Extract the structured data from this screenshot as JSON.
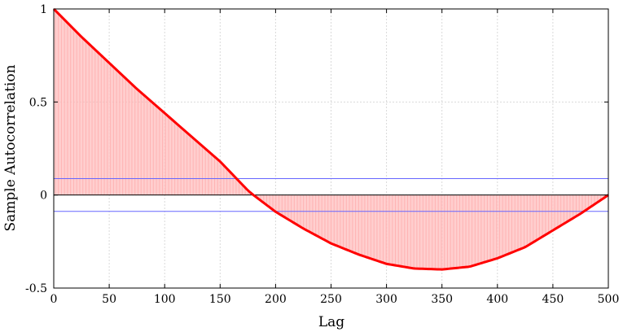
{
  "chart_data": {
    "type": "area",
    "xlabel": "Lag",
    "ylabel": "Sample Autocorrelation",
    "xlim": [
      0,
      500
    ],
    "ylim": [
      -0.5,
      1
    ],
    "xticks": [
      0,
      50,
      100,
      150,
      200,
      250,
      300,
      350,
      400,
      450,
      500
    ],
    "yticks": [
      1,
      0.5,
      0,
      -0.5
    ],
    "ytick_labels": [
      "1",
      "0.5",
      "0",
      "-0.5"
    ],
    "grid": true,
    "confidence_bounds": [
      0.088,
      -0.088
    ],
    "series": [
      {
        "color": "#ff0000",
        "fill_color": "#ffb3b3",
        "x": [
          0,
          25,
          50,
          75,
          100,
          125,
          150,
          175,
          180,
          200,
          225,
          250,
          275,
          300,
          325,
          350,
          375,
          400,
          425,
          450,
          475,
          500
        ],
        "y": [
          1.0,
          0.85,
          0.71,
          0.57,
          0.44,
          0.31,
          0.18,
          0.025,
          0.0,
          -0.09,
          -0.18,
          -0.26,
          -0.32,
          -0.37,
          -0.395,
          -0.4,
          -0.385,
          -0.34,
          -0.28,
          -0.19,
          -0.1,
          0.0
        ]
      }
    ],
    "bound_color": "#6666ff",
    "zero_line_color": "#000000"
  }
}
